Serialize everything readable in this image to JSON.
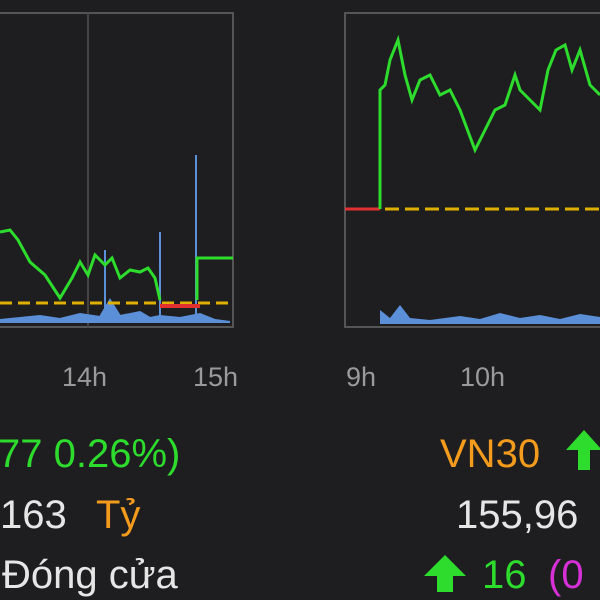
{
  "left_panel": {
    "x_labels": [
      "14h",
      "15h"
    ],
    "change": "77 0.26%)",
    "value": "163",
    "unit": "Tỷ",
    "status": "Đóng cửa"
  },
  "right_panel": {
    "x_labels": [
      "9h",
      "10h"
    ],
    "index_name": "VN30",
    "value": "155,96",
    "change": "16",
    "change_pct": "(0"
  }
}
